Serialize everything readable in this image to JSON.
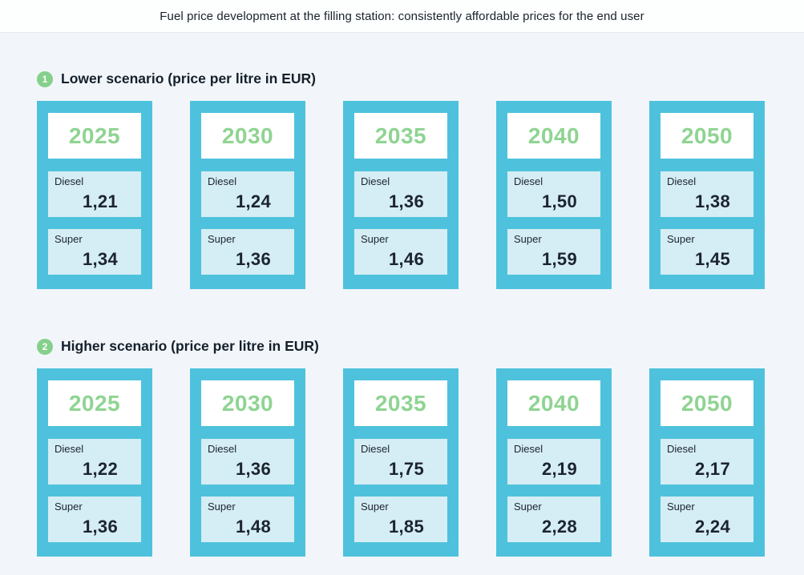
{
  "page": {
    "title": "Fuel price development at the filling station: consistently affordable prices for the end user"
  },
  "colors": {
    "page_background": "#f2f6fa",
    "card_teal": "#4ec2dc",
    "inner_box_light_blue": "#d5edf4",
    "year_text_green": "#8fd492",
    "badge_green": "#85d08c",
    "text_dark": "#1c2430",
    "year_box_white": "#ffffff"
  },
  "scenarios": [
    {
      "badge": "1",
      "heading": "Lower scenario (price per litre in EUR)",
      "cards": [
        {
          "year": "2025",
          "fuels": [
            {
              "label": "Diesel",
              "value": "1,21"
            },
            {
              "label": "Super",
              "value": "1,34"
            }
          ]
        },
        {
          "year": "2030",
          "fuels": [
            {
              "label": "Diesel",
              "value": "1,24"
            },
            {
              "label": "Super",
              "value": "1,36"
            }
          ]
        },
        {
          "year": "2035",
          "fuels": [
            {
              "label": "Diesel",
              "value": "1,36"
            },
            {
              "label": "Super",
              "value": "1,46"
            }
          ]
        },
        {
          "year": "2040",
          "fuels": [
            {
              "label": "Diesel",
              "value": "1,50"
            },
            {
              "label": "Super",
              "value": "1,59"
            }
          ]
        },
        {
          "year": "2050",
          "fuels": [
            {
              "label": "Diesel",
              "value": "1,38"
            },
            {
              "label": "Super",
              "value": "1,45"
            }
          ]
        }
      ]
    },
    {
      "badge": "2",
      "heading": "Higher scenario (price per litre in EUR)",
      "cards": [
        {
          "year": "2025",
          "fuels": [
            {
              "label": "Diesel",
              "value": "1,22"
            },
            {
              "label": "Super",
              "value": "1,36"
            }
          ]
        },
        {
          "year": "2030",
          "fuels": [
            {
              "label": "Diesel",
              "value": "1,36"
            },
            {
              "label": "Super",
              "value": "1,48"
            }
          ]
        },
        {
          "year": "2035",
          "fuels": [
            {
              "label": "Diesel",
              "value": "1,75"
            },
            {
              "label": "Super",
              "value": "1,85"
            }
          ]
        },
        {
          "year": "2040",
          "fuels": [
            {
              "label": "Diesel",
              "value": "2,19"
            },
            {
              "label": "Super",
              "value": "2,28"
            }
          ]
        },
        {
          "year": "2050",
          "fuels": [
            {
              "label": "Diesel",
              "value": "2,17"
            },
            {
              "label": "Super",
              "value": "2,24"
            }
          ]
        }
      ]
    }
  ],
  "chart_data": {
    "type": "table",
    "title": "Fuel price development at the filling station: consistently affordable prices for the end user",
    "categories": [
      "2025",
      "2030",
      "2035",
      "2040",
      "2050"
    ],
    "unit": "EUR per litre",
    "decimal_separator": ",",
    "groups": [
      {
        "name": "Lower scenario (price per litre in EUR)",
        "series": [
          {
            "name": "Diesel",
            "values": [
              1.21,
              1.24,
              1.36,
              1.5,
              1.38
            ]
          },
          {
            "name": "Super",
            "values": [
              1.34,
              1.36,
              1.46,
              1.59,
              1.45
            ]
          }
        ]
      },
      {
        "name": "Higher scenario (price per litre in EUR)",
        "series": [
          {
            "name": "Diesel",
            "values": [
              1.22,
              1.36,
              1.75,
              2.19,
              2.17
            ]
          },
          {
            "name": "Super",
            "values": [
              1.36,
              1.48,
              1.85,
              2.28,
              2.24
            ]
          }
        ]
      }
    ]
  }
}
